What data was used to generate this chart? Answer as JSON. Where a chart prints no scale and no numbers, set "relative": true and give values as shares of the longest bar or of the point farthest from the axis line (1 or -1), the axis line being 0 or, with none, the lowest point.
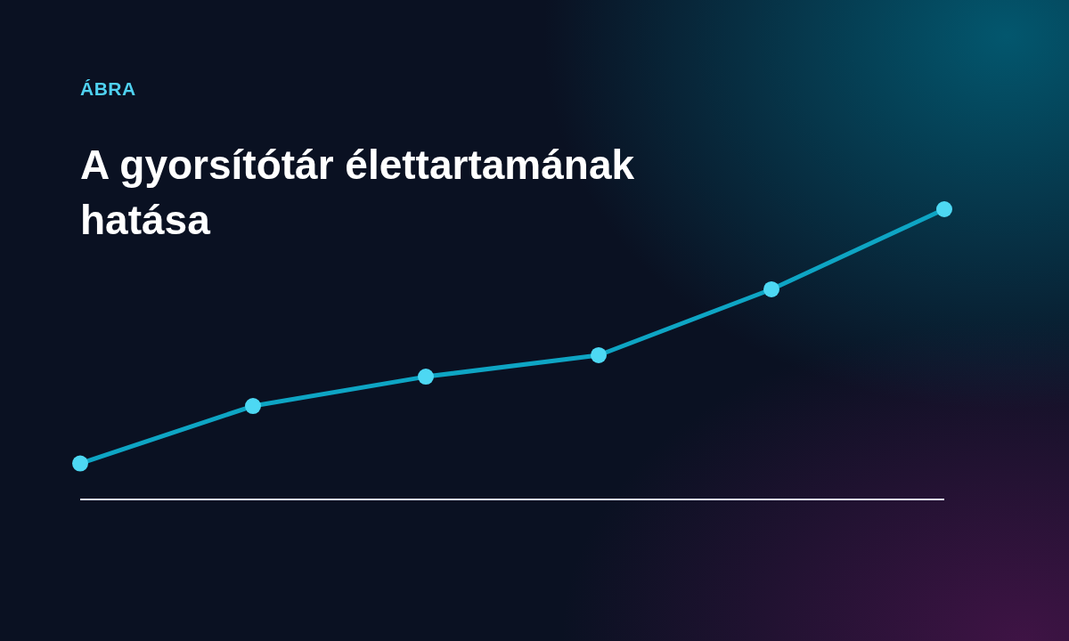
{
  "chart_data": {
    "type": "line",
    "title": "A gyorsítótár élettartamának hatása",
    "subtitle": "ÁBRA",
    "categories": [
      null,
      null,
      null,
      null,
      null,
      null
    ],
    "series": [
      {
        "color": "#0ea5c4",
        "values": [
          0.124,
          0.322,
          0.423,
          0.497,
          0.724,
          1
        ],
        "colors": [
          "#4dd8f3",
          "#4dd8f3",
          "#4dd8f3",
          "#4dd8f3",
          "#4dd8f3",
          "#4dd8f3"
        ]
      }
    ],
    "relative": true,
    "marker": "circle",
    "line_style": "solid"
  }
}
